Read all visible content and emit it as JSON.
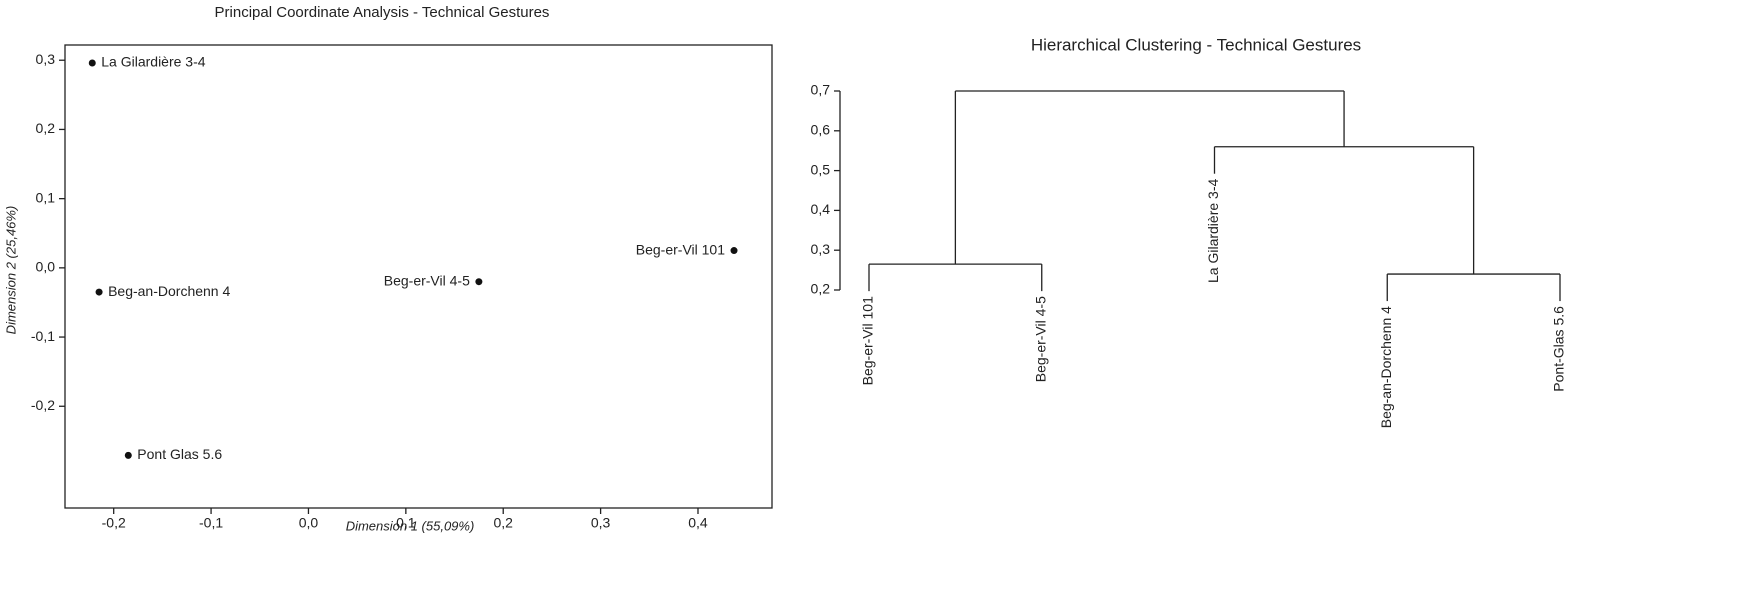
{
  "chart_data": [
    {
      "type": "scatter",
      "title": "Principal Coordinate Analysis - Technical Gestures",
      "x_label": "Dimension 1 (55,09%)",
      "y_label": "Dimension 2 (25,46%)",
      "labels": [
        "La Gilardière 3-4",
        "Beg-an-Dorchenn 4",
        "Pont Glas 5.6",
        "Beg-er-Vil 4-5",
        "Beg-er-Vil 101"
      ],
      "x": [
        -0.222,
        -0.215,
        -0.185,
        0.175,
        0.437
      ],
      "values": [
        0.296,
        -0.035,
        -0.271,
        -0.02,
        0.025
      ],
      "color": "#111111",
      "xlim": [
        -0.25,
        0.476
      ],
      "ylim": [
        -0.347,
        0.322
      ],
      "xticks": [
        {
          "value": -0.2,
          "label": "-0,2"
        },
        {
          "value": -0.1,
          "label": "-0,1"
        },
        {
          "value": 0,
          "label": "0,0"
        },
        {
          "value": 0.1,
          "label": "0,1"
        },
        {
          "value": 0.2,
          "label": "0,2"
        },
        {
          "value": 0.3,
          "label": "0,3"
        },
        {
          "value": 0.4,
          "label": "0,4"
        }
      ],
      "yticks": [
        {
          "value": -0.2,
          "label": "-0,2"
        },
        {
          "value": -0.1,
          "label": "-0,1"
        },
        {
          "value": 0,
          "label": "0,0"
        },
        {
          "value": 0.1,
          "label": "0,1"
        },
        {
          "value": 0.2,
          "label": "0,2"
        },
        {
          "value": 0.3,
          "label": "0,3"
        }
      ]
    },
    {
      "type": "dendrogram",
      "title": "Hierarchical Clustering - Technical Gestures",
      "labels": [
        "Beg-er-Vil 101",
        "Beg-er-Vil 4-5",
        "La Gilardière 3-4",
        "Beg-an-Dorchenn 4",
        "Pont-Glas 5.6"
      ],
      "merge": [
        [
          -4,
          -5
        ],
        [
          -1,
          -2
        ],
        [
          -3,
          1
        ],
        [
          2,
          3
        ]
      ],
      "height": [
        0.24,
        0.265,
        0.56,
        0.7
      ],
      "ylim": [
        0.2,
        0.7
      ],
      "yticks": [
        {
          "value": 0.2,
          "label": "0,2"
        },
        {
          "value": 0.3,
          "label": "0,3"
        },
        {
          "value": 0.4,
          "label": "0,4"
        },
        {
          "value": 0.5,
          "label": "0,5"
        },
        {
          "value": 0.6,
          "label": "0,6"
        },
        {
          "value": 0.7,
          "label": "0,7"
        }
      ]
    }
  ]
}
